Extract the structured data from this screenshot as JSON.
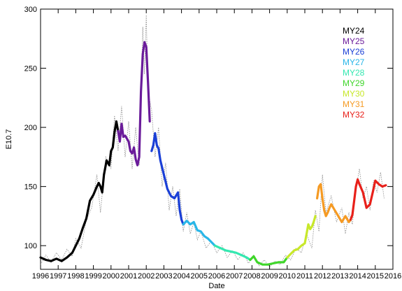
{
  "chart_data": {
    "type": "line",
    "xlabel": "Date",
    "ylabel": "E10.7",
    "xlim": [
      1996,
      2016
    ],
    "ylim": [
      80,
      300
    ],
    "x_ticks": [
      1996,
      1997,
      1998,
      1999,
      2000,
      2001,
      2002,
      2003,
      2004,
      2005,
      2006,
      2007,
      2008,
      2009,
      2010,
      2011,
      2012,
      2013,
      2014,
      2015,
      2016
    ],
    "y_ticks": [
      100,
      150,
      200,
      250,
      300
    ],
    "grid": false,
    "legend_position": "top-right",
    "raw_series": {
      "style": "dotted",
      "color": "#888888",
      "points": [
        [
          1996.0,
          84
        ],
        [
          1996.3,
          92
        ],
        [
          1996.6,
          86
        ],
        [
          1996.9,
          94
        ],
        [
          1997.2,
          88
        ],
        [
          1997.5,
          97
        ],
        [
          1997.8,
          91
        ],
        [
          1998.0,
          106
        ],
        [
          1998.3,
          98
        ],
        [
          1998.6,
          122
        ],
        [
          1998.9,
          132
        ],
        [
          1999.2,
          160
        ],
        [
          1999.4,
          128
        ],
        [
          1999.7,
          175
        ],
        [
          2000.0,
          165
        ],
        [
          2000.2,
          210
        ],
        [
          2000.4,
          180
        ],
        [
          2000.6,
          218
        ],
        [
          2000.8,
          175
        ],
        [
          2001.0,
          205
        ],
        [
          2001.2,
          165
        ],
        [
          2001.4,
          200
        ],
        [
          2001.6,
          168
        ],
        [
          2001.8,
          285
        ],
        [
          2001.9,
          245
        ],
        [
          2002.0,
          295
        ],
        [
          2002.1,
          230
        ],
        [
          2002.3,
          215
        ],
        [
          2002.5,
          175
        ],
        [
          2002.7,
          200
        ],
        [
          2002.9,
          150
        ],
        [
          2003.1,
          170
        ],
        [
          2003.3,
          130
        ],
        [
          2003.5,
          150
        ],
        [
          2003.7,
          125
        ],
        [
          2003.9,
          148
        ],
        [
          2004.1,
          112
        ],
        [
          2004.3,
          128
        ],
        [
          2004.5,
          110
        ],
        [
          2004.7,
          120
        ],
        [
          2004.9,
          105
        ],
        [
          2005.1,
          112
        ],
        [
          2005.4,
          98
        ],
        [
          2005.7,
          104
        ],
        [
          2006.0,
          94
        ],
        [
          2006.3,
          100
        ],
        [
          2006.6,
          90
        ],
        [
          2006.9,
          96
        ],
        [
          2007.2,
          88
        ],
        [
          2007.5,
          94
        ],
        [
          2007.8,
          85
        ],
        [
          2008.1,
          92
        ],
        [
          2008.4,
          83
        ],
        [
          2008.7,
          88
        ],
        [
          2009.0,
          82
        ],
        [
          2009.3,
          87
        ],
        [
          2009.6,
          84
        ],
        [
          2009.9,
          92
        ],
        [
          2010.2,
          88
        ],
        [
          2010.5,
          98
        ],
        [
          2010.8,
          94
        ],
        [
          2011.1,
          110
        ],
        [
          2011.4,
          98
        ],
        [
          2011.6,
          130
        ],
        [
          2011.8,
          112
        ],
        [
          2012.0,
          160
        ],
        [
          2012.2,
          128
        ],
        [
          2012.5,
          142
        ],
        [
          2012.8,
          120
        ],
        [
          2013.1,
          132
        ],
        [
          2013.3,
          110
        ],
        [
          2013.5,
          128
        ],
        [
          2013.7,
          118
        ],
        [
          2013.9,
          148
        ],
        [
          2014.1,
          165
        ],
        [
          2014.3,
          140
        ],
        [
          2014.5,
          150
        ],
        [
          2014.7,
          130
        ],
        [
          2014.9,
          155
        ],
        [
          2015.1,
          145
        ],
        [
          2015.3,
          162
        ],
        [
          2015.5,
          140
        ]
      ]
    },
    "series": [
      {
        "name": "MY24",
        "color": "#000000",
        "points": [
          [
            1996.0,
            90
          ],
          [
            1996.3,
            88
          ],
          [
            1996.6,
            87
          ],
          [
            1996.9,
            89
          ],
          [
            1997.2,
            87
          ],
          [
            1997.5,
            90
          ],
          [
            1997.8,
            94
          ],
          [
            1998.0,
            100
          ],
          [
            1998.2,
            106
          ],
          [
            1998.4,
            115
          ],
          [
            1998.6,
            123
          ],
          [
            1998.8,
            138
          ],
          [
            1999.0,
            143
          ],
          [
            1999.2,
            150
          ],
          [
            1999.3,
            153
          ],
          [
            1999.4,
            150
          ],
          [
            1999.5,
            145
          ],
          [
            1999.6,
            160
          ],
          [
            1999.75,
            172
          ],
          [
            1999.9,
            168
          ],
          [
            2000.0,
            180
          ],
          [
            2000.1,
            183
          ],
          [
            2000.2,
            196
          ],
          [
            2000.3,
            205
          ],
          [
            2000.4,
            197
          ]
        ]
      },
      {
        "name": "MY25",
        "color": "#6a1b9a",
        "points": [
          [
            2000.4,
            197
          ],
          [
            2000.5,
            188
          ],
          [
            2000.6,
            203
          ],
          [
            2000.7,
            192
          ],
          [
            2000.8,
            193
          ],
          [
            2001.0,
            188
          ],
          [
            2001.1,
            180
          ],
          [
            2001.2,
            178
          ],
          [
            2001.3,
            183
          ],
          [
            2001.4,
            173
          ],
          [
            2001.5,
            168
          ],
          [
            2001.6,
            175
          ],
          [
            2001.7,
            230
          ],
          [
            2001.8,
            262
          ],
          [
            2001.9,
            272
          ],
          [
            2002.0,
            268
          ],
          [
            2002.1,
            238
          ],
          [
            2002.2,
            205
          ]
        ]
      },
      {
        "name": "MY26",
        "color": "#1a3fd6",
        "points": [
          [
            2002.3,
            180
          ],
          [
            2002.4,
            185
          ],
          [
            2002.5,
            195
          ],
          [
            2002.6,
            185
          ],
          [
            2002.7,
            182
          ],
          [
            2002.8,
            172
          ],
          [
            2003.0,
            160
          ],
          [
            2003.2,
            148
          ],
          [
            2003.4,
            142
          ],
          [
            2003.6,
            140
          ],
          [
            2003.8,
            145
          ],
          [
            2003.9,
            130
          ],
          [
            2004.0,
            122
          ],
          [
            2004.1,
            118
          ]
        ]
      },
      {
        "name": "MY27",
        "color": "#29b6e8",
        "points": [
          [
            2004.1,
            118
          ],
          [
            2004.3,
            121
          ],
          [
            2004.5,
            118
          ],
          [
            2004.7,
            120
          ],
          [
            2004.9,
            113
          ],
          [
            2005.1,
            112
          ],
          [
            2005.3,
            108
          ],
          [
            2005.5,
            106
          ],
          [
            2005.7,
            103
          ],
          [
            2005.9,
            100
          ]
        ]
      },
      {
        "name": "MY28",
        "color": "#33e8b0",
        "points": [
          [
            2005.9,
            100
          ],
          [
            2006.2,
            98
          ],
          [
            2006.5,
            96
          ],
          [
            2006.8,
            95
          ],
          [
            2007.1,
            94
          ],
          [
            2007.4,
            92
          ],
          [
            2007.7,
            90
          ],
          [
            2007.9,
            88
          ]
        ]
      },
      {
        "name": "MY29",
        "color": "#3fd62a",
        "points": [
          [
            2007.9,
            88
          ],
          [
            2008.1,
            91
          ],
          [
            2008.3,
            86
          ],
          [
            2008.6,
            84
          ],
          [
            2008.9,
            84
          ],
          [
            2009.2,
            85
          ],
          [
            2009.5,
            86
          ],
          [
            2009.8,
            86
          ],
          [
            2010.0,
            90
          ]
        ]
      },
      {
        "name": "MY30",
        "color": "#c8e82a",
        "points": [
          [
            2010.0,
            90
          ],
          [
            2010.2,
            93
          ],
          [
            2010.4,
            96
          ],
          [
            2010.6,
            97
          ],
          [
            2010.8,
            100
          ],
          [
            2011.0,
            102
          ],
          [
            2011.1,
            110
          ],
          [
            2011.2,
            118
          ],
          [
            2011.3,
            114
          ],
          [
            2011.4,
            116
          ],
          [
            2011.5,
            120
          ],
          [
            2011.6,
            125
          ]
        ]
      },
      {
        "name": "MY31",
        "color": "#f59a23",
        "points": [
          [
            2011.7,
            140
          ],
          [
            2011.8,
            150
          ],
          [
            2011.9,
            152
          ],
          [
            2012.0,
            140
          ],
          [
            2012.1,
            130
          ],
          [
            2012.2,
            125
          ],
          [
            2012.3,
            128
          ],
          [
            2012.4,
            132
          ],
          [
            2012.5,
            135
          ],
          [
            2012.7,
            130
          ],
          [
            2012.9,
            125
          ],
          [
            2013.1,
            120
          ],
          [
            2013.3,
            125
          ],
          [
            2013.5,
            120
          ],
          [
            2013.6,
            122
          ]
        ]
      },
      {
        "name": "MY32",
        "color": "#e8201a",
        "points": [
          [
            2013.6,
            122
          ],
          [
            2013.7,
            126
          ],
          [
            2013.8,
            138
          ],
          [
            2013.9,
            150
          ],
          [
            2014.0,
            156
          ],
          [
            2014.1,
            152
          ],
          [
            2014.3,
            145
          ],
          [
            2014.5,
            132
          ],
          [
            2014.7,
            135
          ],
          [
            2014.9,
            148
          ],
          [
            2015.0,
            155
          ],
          [
            2015.2,
            152
          ],
          [
            2015.4,
            150
          ],
          [
            2015.6,
            151
          ]
        ]
      }
    ]
  }
}
